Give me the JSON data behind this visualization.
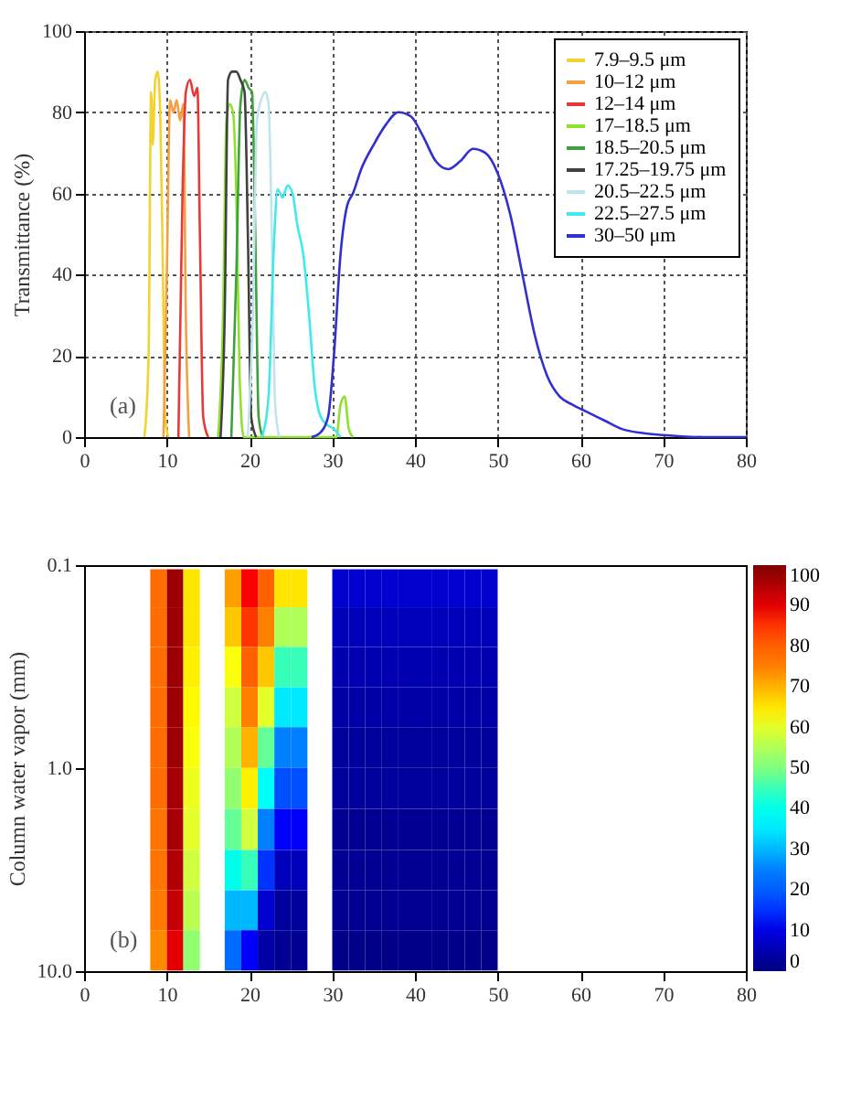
{
  "chart_data": [
    {
      "type": "line",
      "ylabel": "Transmittance (%)",
      "xlim": [
        0,
        80
      ],
      "xticks": [
        0,
        10,
        20,
        30,
        40,
        50,
        60,
        70,
        80
      ],
      "ylim": [
        0,
        100
      ],
      "yticks": [
        0,
        20,
        40,
        60,
        80,
        100
      ],
      "grid": true,
      "legend": "top right",
      "annotations": [
        "(a)"
      ],
      "series": [
        {
          "name": "7.9–9.5 μm",
          "color": "#f2d230",
          "x": [
            7.3,
            7.8,
            8.1,
            8.3,
            8.6,
            8.9,
            9.2,
            9.5,
            9.8,
            10.2
          ],
          "values": [
            0,
            20,
            85,
            72,
            88,
            90,
            80,
            45,
            5,
            0
          ]
        },
        {
          "name": "10–12 μm",
          "color": "#f5a040",
          "x": [
            9.6,
            10.0,
            10.4,
            10.8,
            11.2,
            11.6,
            12.0,
            12.3,
            12.7
          ],
          "values": [
            0,
            40,
            83,
            80,
            83,
            78,
            82,
            30,
            0
          ]
        },
        {
          "name": "12–14 μm",
          "color": "#e83838",
          "x": [
            11.4,
            11.9,
            12.3,
            12.8,
            13.3,
            13.7,
            14.0,
            14.4,
            15.0
          ],
          "values": [
            0,
            60,
            85,
            88,
            84,
            86,
            50,
            5,
            0
          ]
        },
        {
          "name": "17–18.5 μm",
          "color": "#90e030",
          "x": [
            16.2,
            16.8,
            17.2,
            17.6,
            18.0,
            18.4,
            18.8,
            19.3,
            30.5,
            31.0,
            31.5,
            32.0,
            32.5
          ],
          "values": [
            0,
            30,
            78,
            82,
            80,
            60,
            15,
            0,
            0,
            8,
            10,
            2,
            0
          ]
        },
        {
          "name": "18.5–20.5 μm",
          "color": "#40a040",
          "x": [
            17.8,
            18.4,
            18.9,
            19.4,
            19.9,
            20.3,
            20.7,
            21.1,
            21.6
          ],
          "values": [
            0,
            40,
            82,
            88,
            86,
            85,
            50,
            5,
            0
          ]
        },
        {
          "name": "17.25–19.75 μm",
          "color": "#404040",
          "x": [
            16.5,
            17.0,
            17.4,
            17.9,
            18.4,
            18.9,
            19.4,
            19.8,
            20.2,
            20.8
          ],
          "values": [
            0,
            30,
            88,
            90,
            90,
            88,
            85,
            50,
            5,
            0
          ]
        },
        {
          "name": "20.5–22.5 μm",
          "color": "#c0e4ec",
          "x": [
            19.8,
            20.4,
            20.9,
            21.4,
            21.9,
            22.3,
            22.7,
            23.1,
            23.6
          ],
          "values": [
            0,
            30,
            78,
            83,
            85,
            82,
            50,
            8,
            0
          ]
        },
        {
          "name": "22.5–27.5 μm",
          "color": "#40e8f0",
          "x": [
            21.5,
            22.3,
            22.9,
            23.4,
            24.0,
            24.6,
            25.2,
            25.8,
            26.5,
            27.2,
            27.9,
            28.6,
            29.4,
            30.2,
            31.0
          ],
          "values": [
            0,
            10,
            45,
            61,
            59,
            62,
            60,
            52,
            45,
            30,
            12,
            5,
            3,
            2,
            0
          ]
        },
        {
          "name": "30–50 μm",
          "color": "#3030d0",
          "x": [
            27.5,
            28.5,
            29.5,
            30.2,
            31.0,
            31.8,
            32.5,
            33.5,
            35.0,
            36.5,
            38.0,
            39.5,
            41.0,
            42.5,
            44.0,
            45.5,
            47.0,
            48.5,
            50.0,
            51.5,
            53.0,
            54.5,
            56.0,
            57.5,
            59.0,
            61.0,
            63.0,
            65.0,
            67.5,
            70.0,
            75.0,
            80.0
          ],
          "values": [
            0,
            1,
            5,
            20,
            45,
            57,
            60,
            66,
            72,
            77,
            80,
            79,
            74,
            68,
            66,
            68,
            71,
            70,
            65,
            55,
            40,
            25,
            15,
            10,
            8,
            6,
            4,
            2,
            1,
            0.5,
            0,
            0
          ]
        }
      ]
    },
    {
      "type": "scatter",
      "marker": "square",
      "ylabel": "Column water vapor (mm)",
      "xlim": [
        0,
        80
      ],
      "xticks": [
        0,
        10,
        20,
        30,
        40,
        50,
        60,
        70,
        80
      ],
      "ylim": [
        10,
        0.1
      ],
      "yticks": [
        {
          "value": 0.1,
          "label": "0.1"
        },
        {
          "value": 1,
          "label": "1.0"
        },
        {
          "value": 10,
          "label": "10.0"
        }
      ],
      "log": "y",
      "clim": [
        0,
        100
      ],
      "cticks": [
        0,
        10,
        20,
        30,
        40,
        50,
        60,
        70,
        80,
        90,
        100
      ],
      "annotations": [
        "(b)"
      ],
      "x": [
        9,
        11,
        13,
        18,
        20,
        22,
        24,
        26,
        31,
        33,
        35,
        37,
        39,
        41,
        43,
        45,
        47,
        49,
        9,
        11,
        13,
        18,
        20,
        22,
        24,
        26,
        31,
        33,
        35,
        37,
        39,
        41,
        43,
        45,
        47,
        49,
        9,
        11,
        13,
        18,
        20,
        22,
        24,
        26,
        31,
        33,
        35,
        37,
        39,
        41,
        43,
        45,
        47,
        49,
        9,
        11,
        13,
        18,
        20,
        22,
        24,
        26,
        31,
        33,
        35,
        37,
        39,
        41,
        43,
        45,
        47,
        49,
        9,
        11,
        13,
        18,
        20,
        22,
        24,
        26,
        31,
        33,
        35,
        37,
        39,
        41,
        43,
        45,
        47,
        49,
        9,
        11,
        13,
        18,
        20,
        22,
        24,
        26,
        31,
        33,
        35,
        37,
        39,
        41,
        43,
        45,
        47,
        49,
        9,
        11,
        13,
        18,
        20,
        22,
        24,
        26,
        31,
        33,
        35,
        37,
        39,
        41,
        43,
        45,
        47,
        49,
        9,
        11,
        13,
        18,
        20,
        22,
        24,
        26,
        31,
        33,
        35,
        37,
        39,
        41,
        43,
        45,
        47,
        49,
        9,
        11,
        13,
        18,
        20,
        22,
        24,
        26,
        31,
        33,
        35,
        37,
        39,
        41,
        43,
        45,
        47,
        49,
        9,
        11,
        13,
        18,
        20,
        22,
        24,
        26,
        31,
        33,
        35,
        37,
        39,
        41,
        43,
        45,
        47,
        49
      ],
      "values": [
        0.13,
        0.13,
        0.13,
        0.13,
        0.13,
        0.13,
        0.13,
        0.13,
        0.13,
        0.13,
        0.13,
        0.13,
        0.13,
        0.13,
        0.13,
        0.13,
        0.13,
        0.13,
        0.2,
        0.2,
        0.2,
        0.2,
        0.2,
        0.2,
        0.2,
        0.2,
        0.2,
        0.2,
        0.2,
        0.2,
        0.2,
        0.2,
        0.2,
        0.2,
        0.2,
        0.2,
        0.32,
        0.32,
        0.32,
        0.32,
        0.32,
        0.32,
        0.32,
        0.32,
        0.32,
        0.32,
        0.32,
        0.32,
        0.32,
        0.32,
        0.32,
        0.32,
        0.32,
        0.32,
        0.5,
        0.5,
        0.5,
        0.5,
        0.5,
        0.5,
        0.5,
        0.5,
        0.5,
        0.5,
        0.5,
        0.5,
        0.5,
        0.5,
        0.5,
        0.5,
        0.5,
        0.5,
        0.79,
        0.79,
        0.79,
        0.79,
        0.79,
        0.79,
        0.79,
        0.79,
        0.79,
        0.79,
        0.79,
        0.79,
        0.79,
        0.79,
        0.79,
        0.79,
        0.79,
        0.79,
        1.26,
        1.26,
        1.26,
        1.26,
        1.26,
        1.26,
        1.26,
        1.26,
        1.26,
        1.26,
        1.26,
        1.26,
        1.26,
        1.26,
        1.26,
        1.26,
        1.26,
        1.26,
        2,
        2,
        2,
        2,
        2,
        2,
        2,
        2,
        2,
        2,
        2,
        2,
        2,
        2,
        2,
        2,
        2,
        2,
        3.2,
        3.2,
        3.2,
        3.2,
        3.2,
        3.2,
        3.2,
        3.2,
        3.2,
        3.2,
        3.2,
        3.2,
        3.2,
        3.2,
        3.2,
        3.2,
        3.2,
        3.2,
        5,
        5,
        5,
        5,
        5,
        5,
        5,
        5,
        5,
        5,
        5,
        5,
        5,
        5,
        5,
        5,
        5,
        5,
        7.9,
        7.9,
        7.9,
        7.9,
        7.9,
        7.9,
        7.9,
        7.9,
        7.9,
        7.9,
        7.9,
        7.9,
        7.9,
        7.9,
        7.9,
        7.9,
        7.9,
        7.9
      ],
      "cvalues": [
        78,
        97,
        65,
        72,
        88,
        80,
        65,
        65,
        8,
        8,
        8,
        8,
        8,
        8,
        8,
        8,
        8,
        8,
        78,
        97,
        65,
        68,
        85,
        75,
        55,
        55,
        6,
        6,
        6,
        6,
        6,
        6,
        6,
        6,
        6,
        6,
        78,
        97,
        64,
        62,
        80,
        68,
        45,
        45,
        5,
        5,
        5,
        5,
        5,
        5,
        5,
        5,
        5,
        5,
        78,
        97,
        63,
        58,
        75,
        60,
        35,
        35,
        4,
        4,
        4,
        4,
        4,
        4,
        4,
        4,
        4,
        4,
        78,
        97,
        62,
        55,
        70,
        48,
        25,
        25,
        3,
        3,
        3,
        3,
        3,
        3,
        3,
        3,
        3,
        3,
        78,
        96,
        61,
        52,
        64,
        38,
        18,
        18,
        3,
        3,
        3,
        3,
        3,
        3,
        3,
        3,
        3,
        3,
        77,
        96,
        60,
        48,
        58,
        25,
        12,
        12,
        2,
        2,
        2,
        2,
        2,
        2,
        2,
        2,
        2,
        2,
        77,
        95,
        58,
        40,
        45,
        15,
        6,
        6,
        2,
        2,
        2,
        2,
        2,
        2,
        2,
        2,
        2,
        2,
        76,
        93,
        56,
        30,
        30,
        8,
        3,
        3,
        2,
        2,
        2,
        2,
        2,
        2,
        2,
        2,
        2,
        2,
        74,
        90,
        52,
        22,
        12,
        4,
        2,
        2,
        1,
        1,
        1,
        1,
        1,
        1,
        1,
        1,
        1,
        1
      ]
    }
  ]
}
